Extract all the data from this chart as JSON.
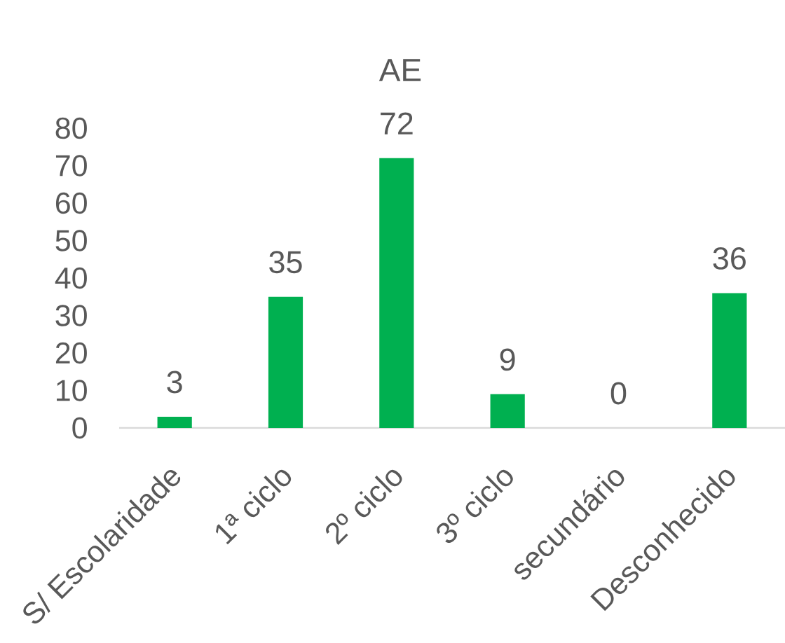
{
  "chart_data": {
    "type": "bar",
    "title": "AE",
    "categories": [
      "S/ Escolaridade",
      "1ª ciclo",
      "2º ciclo",
      "3º ciclo",
      "secundário",
      "Desconhecido"
    ],
    "values": [
      3,
      35,
      72,
      9,
      0,
      36
    ],
    "color": "#00b050",
    "ylim": [
      0,
      80
    ],
    "yticks": [
      0,
      10,
      20,
      30,
      40,
      50,
      60,
      70,
      80
    ],
    "data_labels": true
  }
}
